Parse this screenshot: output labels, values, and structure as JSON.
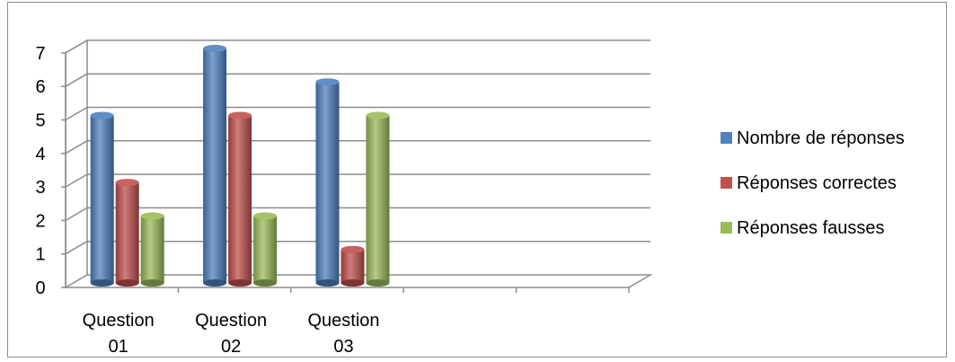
{
  "chart_data": {
    "type": "bar",
    "categories": [
      [
        "Question",
        "01"
      ],
      [
        "Question",
        "02"
      ],
      [
        "Question",
        "03"
      ],
      [
        "",
        ""
      ],
      [
        "",
        ""
      ]
    ],
    "series": [
      {
        "name": "Nombre de réponses",
        "values": [
          5,
          7,
          6,
          null,
          null
        ],
        "color": "#4f81bd"
      },
      {
        "name": "Réponses correctes",
        "values": [
          3,
          5,
          1,
          null,
          null
        ],
        "color": "#c0504d"
      },
      {
        "name": "Réponses fausses",
        "values": [
          2,
          2,
          5,
          null,
          null
        ],
        "color": "#9bbb59"
      }
    ],
    "ylim": [
      0,
      7
    ],
    "yticks": [
      0,
      1,
      2,
      3,
      4,
      5,
      6,
      7
    ],
    "grid": true,
    "legend": "right",
    "title": "",
    "xlabel": "",
    "ylabel": ""
  }
}
